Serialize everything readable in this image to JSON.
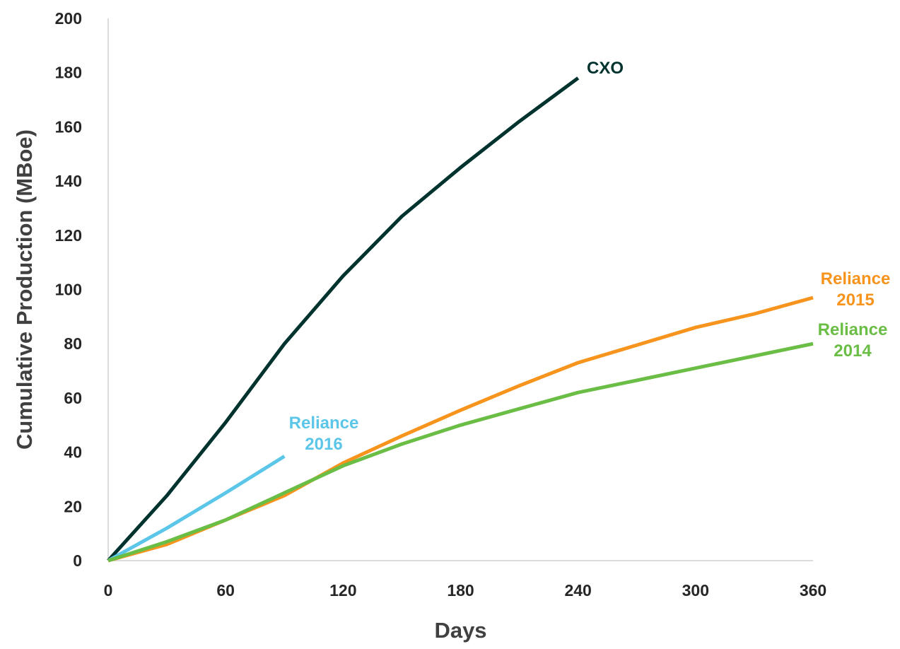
{
  "chart_data": {
    "type": "line",
    "title": "",
    "xlabel": "Days",
    "ylabel": "Cumulative Production (MBoe)",
    "xlim": [
      0,
      360
    ],
    "ylim": [
      0,
      200
    ],
    "xticks": [
      "0",
      "60",
      "120",
      "180",
      "240",
      "300",
      "360"
    ],
    "yticks": [
      "0",
      "20",
      "40",
      "60",
      "80",
      "100",
      "120",
      "140",
      "160",
      "180",
      "200"
    ],
    "grid": false,
    "legend": "none",
    "series": [
      {
        "name": "CXO",
        "label_lines": [
          "CXO"
        ],
        "color": "#00332e",
        "x": [
          0,
          30,
          60,
          90,
          120,
          150,
          180,
          210,
          240
        ],
        "y": [
          0,
          24,
          51,
          80,
          105,
          127,
          145,
          162,
          178
        ]
      },
      {
        "name": "Reliance 2016",
        "label_lines": [
          "Reliance",
          "2016"
        ],
        "color": "#5bc6e8",
        "x": [
          0,
          30,
          60,
          90
        ],
        "y": [
          0,
          12,
          25,
          38.5
        ]
      },
      {
        "name": "Reliance 2015",
        "label_lines": [
          "Reliance",
          "2015"
        ],
        "color": "#f7941d",
        "x": [
          0,
          30,
          60,
          90,
          120,
          150,
          180,
          210,
          240,
          270,
          300,
          330,
          360
        ],
        "y": [
          0,
          6,
          15,
          24,
          36,
          46,
          55.5,
          64.5,
          73,
          79.5,
          86,
          91,
          97
        ]
      },
      {
        "name": "Reliance 2014",
        "label_lines": [
          "Reliance",
          "2014"
        ],
        "color": "#6abd45",
        "x": [
          0,
          30,
          60,
          90,
          120,
          150,
          180,
          210,
          240,
          270,
          300,
          330,
          360
        ],
        "y": [
          0,
          7,
          15,
          25,
          35,
          43,
          50,
          56,
          62,
          66.5,
          71,
          75.5,
          80
        ]
      }
    ]
  }
}
